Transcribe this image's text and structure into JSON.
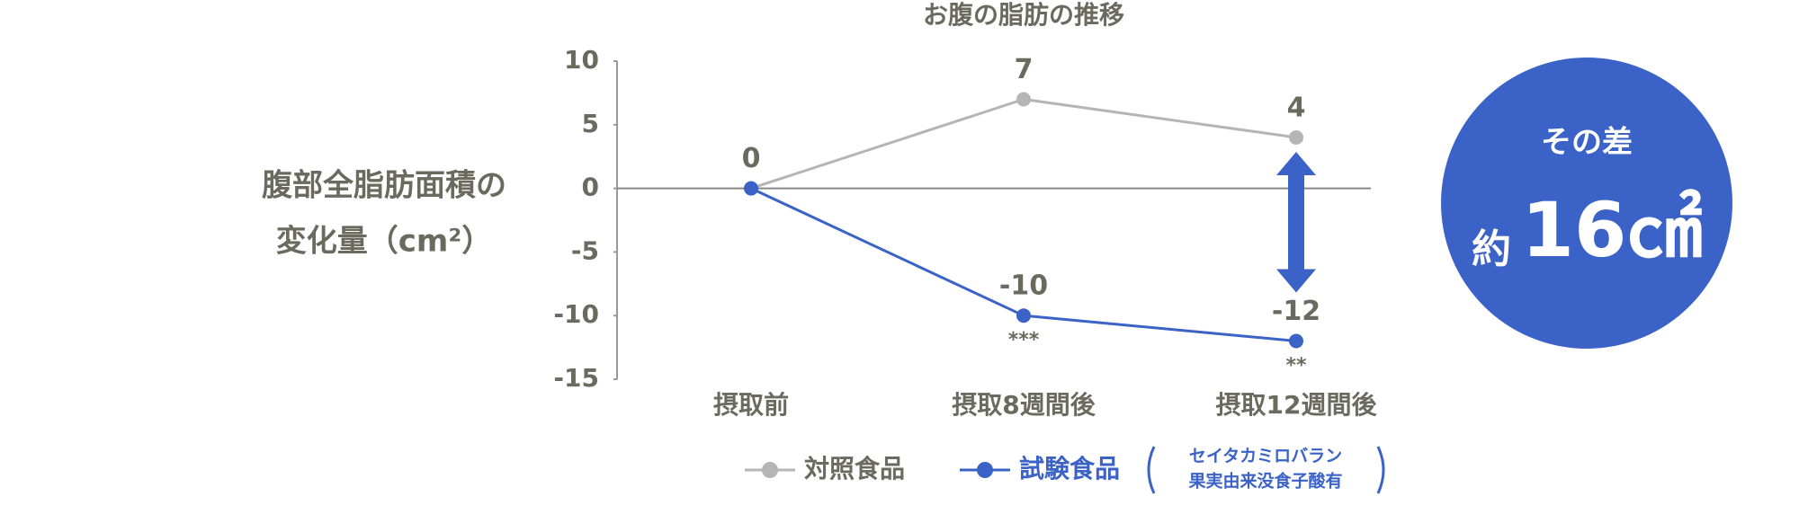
{
  "chart_data": {
    "type": "line",
    "title": "お腹の脂肪の推移",
    "y_label": [
      "腹部全脂肪面積の",
      "変化量（cm²）"
    ],
    "categories": [
      "摂取前",
      "摂取8週間後",
      "摂取12週間後"
    ],
    "series": [
      {
        "name": "対照食品",
        "color": "#b5b5b5",
        "values": [
          0,
          7,
          4
        ]
      },
      {
        "name": "試験食品",
        "color": "#3b62c6",
        "values": [
          0,
          -10,
          -12
        ],
        "significance": [
          null,
          "***",
          "**"
        ]
      }
    ],
    "legend_note": [
      "セイタカミロバラン",
      "果実由来没食子酸有"
    ],
    "ylim": [
      -15,
      10
    ],
    "yticks": [
      -15,
      -10,
      -5,
      0,
      5,
      10
    ],
    "difference": {
      "label": "その差",
      "prefix": "約",
      "value": "16㎠",
      "color": "#3b62c6"
    }
  }
}
